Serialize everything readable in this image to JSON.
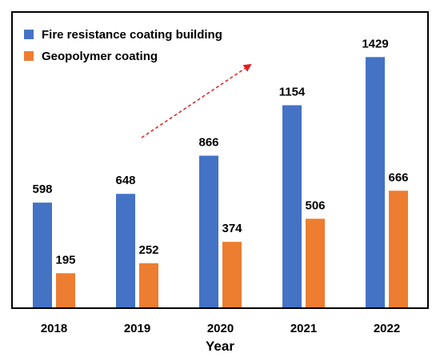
{
  "chart_data": {
    "type": "bar",
    "categories": [
      "2018",
      "2019",
      "2020",
      "2021",
      "2022"
    ],
    "series": [
      {
        "name": "Fire resistance coating building",
        "values": [
          598,
          648,
          866,
          1154,
          1429
        ],
        "color": "#4472c4"
      },
      {
        "name": "Geopolymer coating",
        "values": [
          195,
          252,
          374,
          506,
          666
        ],
        "color": "#ed7d31"
      }
    ],
    "title": "",
    "xlabel": "Year",
    "ylabel": "",
    "ylim": [
      0,
      1540
    ],
    "grid": false,
    "legend_position": "top-left",
    "annotation": {
      "type": "dashed-arrow",
      "color": "#e02020",
      "direction": "up-right"
    }
  }
}
